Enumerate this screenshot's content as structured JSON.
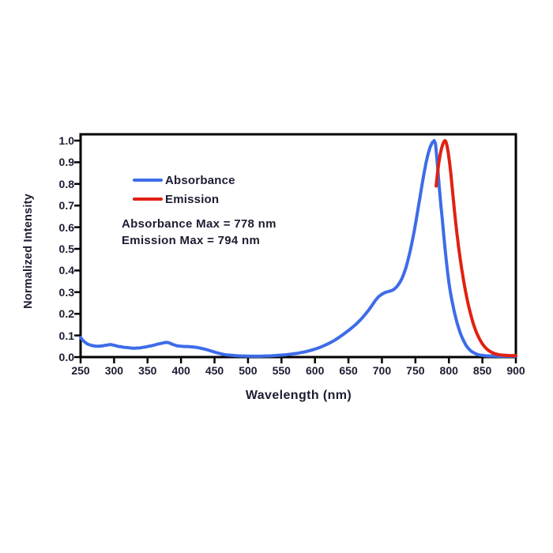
{
  "colors": {
    "background": "#ffffff",
    "text": "#1d1d33",
    "axis": "#000000",
    "absorbance": "#3D6CE8",
    "emission": "#E02112"
  },
  "chart_data": {
    "type": "line",
    "title": "",
    "xlabel": "Wavelength (nm)",
    "ylabel": "Normalized Intensity",
    "xlim": [
      250,
      900
    ],
    "ylim": [
      0.0,
      1.0
    ],
    "x_ticks": [
      250,
      300,
      350,
      400,
      450,
      500,
      550,
      600,
      650,
      700,
      750,
      800,
      850,
      900
    ],
    "y_ticks": [
      0.0,
      0.1,
      0.2,
      0.3,
      0.4,
      0.5,
      0.6,
      0.7,
      0.8,
      0.9,
      1.0
    ],
    "grid": false,
    "legend_position": "inside-upper-left",
    "annotations": [
      "Absorbance Max = 778 nm",
      "Emission Max = 794 nm"
    ],
    "absorbance_max_nm": 778,
    "emission_max_nm": 794,
    "series": [
      {
        "name": "Absorbance",
        "color": "#3D6CE8",
        "points": [
          [
            250,
            0.09
          ],
          [
            253,
            0.079
          ],
          [
            256,
            0.07
          ],
          [
            259,
            0.063
          ],
          [
            262,
            0.058
          ],
          [
            265,
            0.055
          ],
          [
            268,
            0.053
          ],
          [
            271,
            0.051
          ],
          [
            274,
            0.05
          ],
          [
            277,
            0.05
          ],
          [
            280,
            0.051
          ],
          [
            283,
            0.052
          ],
          [
            286,
            0.054
          ],
          [
            289,
            0.055
          ],
          [
            292,
            0.057
          ],
          [
            295,
            0.058
          ],
          [
            298,
            0.056
          ],
          [
            301,
            0.054
          ],
          [
            304,
            0.051
          ],
          [
            307,
            0.049
          ],
          [
            310,
            0.048
          ],
          [
            313,
            0.046
          ],
          [
            316,
            0.045
          ],
          [
            319,
            0.044
          ],
          [
            322,
            0.043
          ],
          [
            325,
            0.042
          ],
          [
            328,
            0.041
          ],
          [
            331,
            0.041
          ],
          [
            334,
            0.042
          ],
          [
            337,
            0.042
          ],
          [
            340,
            0.043
          ],
          [
            343,
            0.045
          ],
          [
            346,
            0.046
          ],
          [
            349,
            0.048
          ],
          [
            352,
            0.05
          ],
          [
            355,
            0.052
          ],
          [
            358,
            0.054
          ],
          [
            361,
            0.056
          ],
          [
            364,
            0.059
          ],
          [
            367,
            0.061
          ],
          [
            370,
            0.063
          ],
          [
            373,
            0.065
          ],
          [
            376,
            0.067
          ],
          [
            379,
            0.068
          ],
          [
            382,
            0.066
          ],
          [
            385,
            0.062
          ],
          [
            388,
            0.058
          ],
          [
            391,
            0.055
          ],
          [
            394,
            0.052
          ],
          [
            397,
            0.051
          ],
          [
            400,
            0.05
          ],
          [
            404,
            0.049
          ],
          [
            408,
            0.049
          ],
          [
            412,
            0.048
          ],
          [
            416,
            0.047
          ],
          [
            420,
            0.046
          ],
          [
            424,
            0.044
          ],
          [
            428,
            0.042
          ],
          [
            432,
            0.039
          ],
          [
            436,
            0.036
          ],
          [
            440,
            0.033
          ],
          [
            444,
            0.029
          ],
          [
            448,
            0.025
          ],
          [
            452,
            0.021
          ],
          [
            456,
            0.018
          ],
          [
            460,
            0.015
          ],
          [
            464,
            0.012
          ],
          [
            468,
            0.01
          ],
          [
            472,
            0.009
          ],
          [
            476,
            0.008
          ],
          [
            480,
            0.007
          ],
          [
            485,
            0.006
          ],
          [
            490,
            0.005
          ],
          [
            495,
            0.005
          ],
          [
            500,
            0.004
          ],
          [
            505,
            0.004
          ],
          [
            510,
            0.004
          ],
          [
            515,
            0.004
          ],
          [
            520,
            0.004
          ],
          [
            525,
            0.005
          ],
          [
            530,
            0.005
          ],
          [
            535,
            0.006
          ],
          [
            540,
            0.007
          ],
          [
            545,
            0.008
          ],
          [
            550,
            0.009
          ],
          [
            555,
            0.01
          ],
          [
            560,
            0.012
          ],
          [
            565,
            0.014
          ],
          [
            570,
            0.016
          ],
          [
            575,
            0.018
          ],
          [
            580,
            0.021
          ],
          [
            585,
            0.024
          ],
          [
            590,
            0.028
          ],
          [
            595,
            0.032
          ],
          [
            600,
            0.037
          ],
          [
            605,
            0.042
          ],
          [
            610,
            0.048
          ],
          [
            615,
            0.055
          ],
          [
            620,
            0.062
          ],
          [
            625,
            0.07
          ],
          [
            630,
            0.079
          ],
          [
            635,
            0.089
          ],
          [
            640,
            0.1
          ],
          [
            645,
            0.111
          ],
          [
            650,
            0.123
          ],
          [
            655,
            0.135
          ],
          [
            660,
            0.148
          ],
          [
            665,
            0.163
          ],
          [
            670,
            0.179
          ],
          [
            675,
            0.197
          ],
          [
            680,
            0.216
          ],
          [
            685,
            0.238
          ],
          [
            690,
            0.261
          ],
          [
            695,
            0.279
          ],
          [
            700,
            0.291
          ],
          [
            705,
            0.299
          ],
          [
            710,
            0.303
          ],
          [
            715,
            0.308
          ],
          [
            718,
            0.313
          ],
          [
            721,
            0.321
          ],
          [
            724,
            0.332
          ],
          [
            727,
            0.346
          ],
          [
            730,
            0.364
          ],
          [
            733,
            0.387
          ],
          [
            736,
            0.415
          ],
          [
            739,
            0.449
          ],
          [
            742,
            0.488
          ],
          [
            745,
            0.531
          ],
          [
            748,
            0.579
          ],
          [
            751,
            0.631
          ],
          [
            754,
            0.686
          ],
          [
            757,
            0.742
          ],
          [
            760,
            0.798
          ],
          [
            763,
            0.852
          ],
          [
            766,
            0.9
          ],
          [
            769,
            0.94
          ],
          [
            772,
            0.97
          ],
          [
            775,
            0.99
          ],
          [
            778,
            1.0
          ],
          [
            780,
            0.985
          ],
          [
            782,
            0.92
          ],
          [
            784,
            0.845
          ],
          [
            786,
            0.77
          ],
          [
            788,
            0.7
          ],
          [
            790,
            0.64
          ],
          [
            792,
            0.575
          ],
          [
            794,
            0.51
          ],
          [
            796,
            0.45
          ],
          [
            798,
            0.395
          ],
          [
            800,
            0.345
          ],
          [
            802,
            0.305
          ],
          [
            804,
            0.27
          ],
          [
            806,
            0.24
          ],
          [
            808,
            0.21
          ],
          [
            810,
            0.185
          ],
          [
            812,
            0.16
          ],
          [
            814,
            0.14
          ],
          [
            816,
            0.12
          ],
          [
            818,
            0.103
          ],
          [
            820,
            0.088
          ],
          [
            822,
            0.075
          ],
          [
            824,
            0.063
          ],
          [
            826,
            0.052
          ],
          [
            828,
            0.044
          ],
          [
            830,
            0.037
          ],
          [
            833,
            0.028
          ],
          [
            836,
            0.022
          ],
          [
            839,
            0.017
          ],
          [
            842,
            0.013
          ],
          [
            845,
            0.01
          ],
          [
            850,
            0.008
          ],
          [
            855,
            0.006
          ],
          [
            860,
            0.005
          ],
          [
            865,
            0.005
          ],
          [
            870,
            0.005
          ],
          [
            875,
            0.004
          ],
          [
            880,
            0.004
          ],
          [
            885,
            0.004
          ],
          [
            890,
            0.004
          ],
          [
            895,
            0.004
          ],
          [
            900,
            0.004
          ]
        ]
      },
      {
        "name": "Emission",
        "color": "#E02112",
        "points": [
          [
            781,
            0.79
          ],
          [
            782,
            0.822
          ],
          [
            783,
            0.85
          ],
          [
            784,
            0.875
          ],
          [
            785,
            0.898
          ],
          [
            786,
            0.918
          ],
          [
            787,
            0.936
          ],
          [
            788,
            0.951
          ],
          [
            789,
            0.964
          ],
          [
            790,
            0.975
          ],
          [
            791,
            0.984
          ],
          [
            792,
            0.991
          ],
          [
            793,
            0.997
          ],
          [
            794,
            1.0
          ],
          [
            795,
            0.998
          ],
          [
            796,
            0.991
          ],
          [
            797,
            0.979
          ],
          [
            798,
            0.963
          ],
          [
            799,
            0.944
          ],
          [
            800,
            0.922
          ],
          [
            801,
            0.898
          ],
          [
            802,
            0.872
          ],
          [
            803,
            0.845
          ],
          [
            804,
            0.812
          ],
          [
            805,
            0.78
          ],
          [
            806,
            0.748
          ],
          [
            807,
            0.716
          ],
          [
            808,
            0.685
          ],
          [
            809,
            0.655
          ],
          [
            810,
            0.625
          ],
          [
            811,
            0.597
          ],
          [
            812,
            0.57
          ],
          [
            813,
            0.545
          ],
          [
            814,
            0.52
          ],
          [
            815,
            0.497
          ],
          [
            816,
            0.474
          ],
          [
            817,
            0.452
          ],
          [
            818,
            0.431
          ],
          [
            819,
            0.41
          ],
          [
            820,
            0.39
          ],
          [
            822,
            0.352
          ],
          [
            824,
            0.317
          ],
          [
            826,
            0.285
          ],
          [
            828,
            0.255
          ],
          [
            830,
            0.228
          ],
          [
            832,
            0.203
          ],
          [
            834,
            0.18
          ],
          [
            836,
            0.159
          ],
          [
            838,
            0.14
          ],
          [
            840,
            0.123
          ],
          [
            842,
            0.108
          ],
          [
            844,
            0.094
          ],
          [
            846,
            0.082
          ],
          [
            848,
            0.071
          ],
          [
            850,
            0.061
          ],
          [
            853,
            0.049
          ],
          [
            856,
            0.039
          ],
          [
            859,
            0.031
          ],
          [
            862,
            0.025
          ],
          [
            865,
            0.02
          ],
          [
            868,
            0.016
          ],
          [
            872,
            0.013
          ],
          [
            876,
            0.01
          ],
          [
            880,
            0.009
          ],
          [
            885,
            0.008
          ],
          [
            890,
            0.007
          ],
          [
            895,
            0.007
          ],
          [
            900,
            0.007
          ]
        ]
      }
    ]
  }
}
